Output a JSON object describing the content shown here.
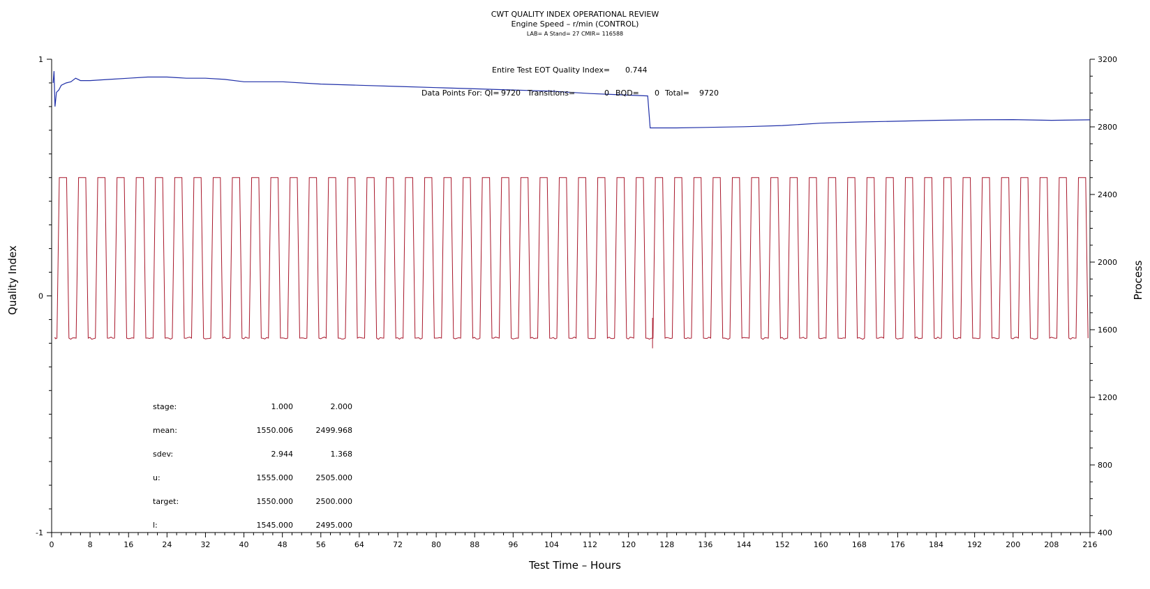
{
  "chart_data": {
    "type": "line",
    "title": "CWT QUALITY INDEX OPERATIONAL REVIEW",
    "subtitle": "Engine Speed – r/min (CONTROL)",
    "subsubtitle": "LAB= A Stand= 27 CMIR= 116588",
    "xlabel": "Test Time – Hours",
    "ylabel_left": "Quality Index",
    "ylabel_right": "Process",
    "xlim": [
      0,
      216
    ],
    "x_ticks": [
      0,
      8,
      16,
      24,
      32,
      40,
      48,
      56,
      64,
      72,
      80,
      88,
      96,
      104,
      112,
      120,
      128,
      136,
      144,
      152,
      160,
      168,
      176,
      184,
      192,
      200,
      208,
      216
    ],
    "ylim_left": [
      -1,
      1
    ],
    "y_ticks_left": [
      1,
      0,
      -1
    ],
    "ylim_right": [
      400,
      3200
    ],
    "y_ticks_right": [
      3200,
      2800,
      2400,
      2000,
      1600,
      1200,
      800,
      400
    ],
    "grid": false,
    "annotations": {
      "eot_label": "Entire Test EOT Quality Index=",
      "eot_value": "0.744",
      "points_label": "Data Points For: QI=",
      "qi_count": "9720",
      "transitions_label": "Transitions=",
      "transitions_count": "0",
      "bqd_label": "BQD=",
      "bqd_count": "0",
      "total_label": "Total=",
      "total_count": "9720"
    },
    "stats_table": {
      "rows": [
        {
          "label": "stage:",
          "v1": "1.000",
          "v2": "2.000"
        },
        {
          "label": "mean:",
          "v1": "1550.006",
          "v2": "2499.968"
        },
        {
          "label": "sdev:",
          "v1": "2.944",
          "v2": "1.368"
        },
        {
          "label": "u:",
          "v1": "1555.000",
          "v2": "2505.000"
        },
        {
          "label": "target:",
          "v1": "1550.000",
          "v2": "2500.000"
        },
        {
          "label": "l:",
          "v1": "1545.000",
          "v2": "2495.000"
        }
      ]
    },
    "series": [
      {
        "axis": "left",
        "color": "#1f2fa8",
        "points": [
          [
            0.3,
            0.9
          ],
          [
            0.5,
            0.95
          ],
          [
            0.7,
            0.8
          ],
          [
            1.0,
            0.86
          ],
          [
            1.5,
            0.87
          ],
          [
            2,
            0.89
          ],
          [
            3,
            0.9
          ],
          [
            4,
            0.905
          ],
          [
            5,
            0.92
          ],
          [
            6,
            0.91
          ],
          [
            8,
            0.91
          ],
          [
            12,
            0.915
          ],
          [
            16,
            0.92
          ],
          [
            20,
            0.925
          ],
          [
            24,
            0.925
          ],
          [
            28,
            0.92
          ],
          [
            32,
            0.92
          ],
          [
            36,
            0.915
          ],
          [
            40,
            0.905
          ],
          [
            48,
            0.905
          ],
          [
            56,
            0.895
          ],
          [
            64,
            0.89
          ],
          [
            72,
            0.885
          ],
          [
            80,
            0.88
          ],
          [
            88,
            0.875
          ],
          [
            96,
            0.87
          ],
          [
            104,
            0.865
          ],
          [
            112,
            0.855
          ],
          [
            118,
            0.85
          ],
          [
            124,
            0.845
          ],
          [
            124.5,
            0.71
          ],
          [
            130,
            0.71
          ],
          [
            136,
            0.712
          ],
          [
            144,
            0.715
          ],
          [
            152,
            0.72
          ],
          [
            160,
            0.73
          ],
          [
            168,
            0.735
          ],
          [
            176,
            0.738
          ],
          [
            184,
            0.742
          ],
          [
            192,
            0.744
          ],
          [
            200,
            0.745
          ],
          [
            208,
            0.742
          ],
          [
            216,
            0.744
          ]
        ]
      },
      {
        "axis": "right",
        "color": "#a8162a",
        "low": 1550,
        "high": 2500,
        "period_hours": 4,
        "high_hours": 1.5,
        "ramp_hours": 0.5,
        "spike": {
          "x": 125,
          "min": 1490,
          "max": 1670
        }
      }
    ]
  }
}
